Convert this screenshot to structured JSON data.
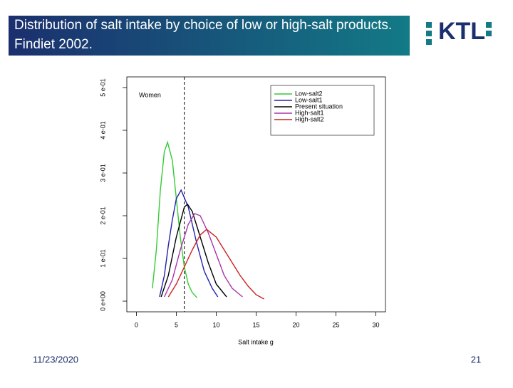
{
  "slide": {
    "title": "Distribution of salt intake by choice of low or high-salt products. Findiet 2002.",
    "logo": "KTL",
    "date": "11/23/2020",
    "page": "21"
  },
  "chart_data": {
    "type": "line",
    "xlabel": "Salt intake g",
    "annotation": "Women",
    "vline": 6,
    "xlim": [
      -1.2,
      31.2
    ],
    "xticks": [
      0,
      5,
      10,
      15,
      20,
      25,
      30
    ],
    "ylim": [
      -0.025,
      0.525
    ],
    "yticks": [
      {
        "value": 0,
        "label": "0 e+00"
      },
      {
        "value": 0.1,
        "label": "1 e-01"
      },
      {
        "value": 0.2,
        "label": "2 e-01"
      },
      {
        "value": 0.3,
        "label": "3 e-01"
      },
      {
        "value": 0.4,
        "label": "4 e-01"
      },
      {
        "value": 0.5,
        "label": "5 e-01"
      }
    ],
    "series": [
      {
        "name": "Low-salt2",
        "color": "#33cc33",
        "x": [
          2.0,
          2.5,
          3.0,
          3.5,
          3.9,
          4.5,
          5.0,
          5.5,
          6.0,
          6.5,
          7.0,
          7.6
        ],
        "values": [
          0.03,
          0.12,
          0.26,
          0.35,
          0.372,
          0.33,
          0.24,
          0.15,
          0.08,
          0.04,
          0.02,
          0.008
        ]
      },
      {
        "name": "Low-salt1",
        "color": "#2222aa",
        "x": [
          2.9,
          3.5,
          4.0,
          4.5,
          5.0,
          5.6,
          6.5,
          7.5,
          8.5,
          9.5,
          10.2
        ],
        "values": [
          0.01,
          0.06,
          0.13,
          0.19,
          0.24,
          0.26,
          0.22,
          0.14,
          0.07,
          0.03,
          0.01
        ]
      },
      {
        "name": "Present situation",
        "color": "#000000",
        "x": [
          3.1,
          4,
          5,
          6,
          6.4,
          7,
          8,
          9,
          10,
          11.3
        ],
        "values": [
          0.01,
          0.06,
          0.15,
          0.22,
          0.227,
          0.21,
          0.15,
          0.09,
          0.04,
          0.01
        ]
      },
      {
        "name": "High-salt1",
        "color": "#aa33aa",
        "x": [
          3.5,
          4.5,
          5.5,
          6.5,
          7.3,
          8,
          9,
          10,
          11,
          12,
          13.3
        ],
        "values": [
          0.01,
          0.05,
          0.12,
          0.18,
          0.205,
          0.2,
          0.16,
          0.11,
          0.06,
          0.03,
          0.01
        ]
      },
      {
        "name": "High-salt2",
        "color": "#cc2222",
        "x": [
          4,
          5,
          6,
          7,
          8,
          8.8,
          10,
          11,
          12,
          13,
          14,
          15,
          16
        ],
        "values": [
          0.01,
          0.04,
          0.08,
          0.12,
          0.155,
          0.168,
          0.15,
          0.12,
          0.09,
          0.06,
          0.035,
          0.015,
          0.005
        ]
      }
    ]
  }
}
